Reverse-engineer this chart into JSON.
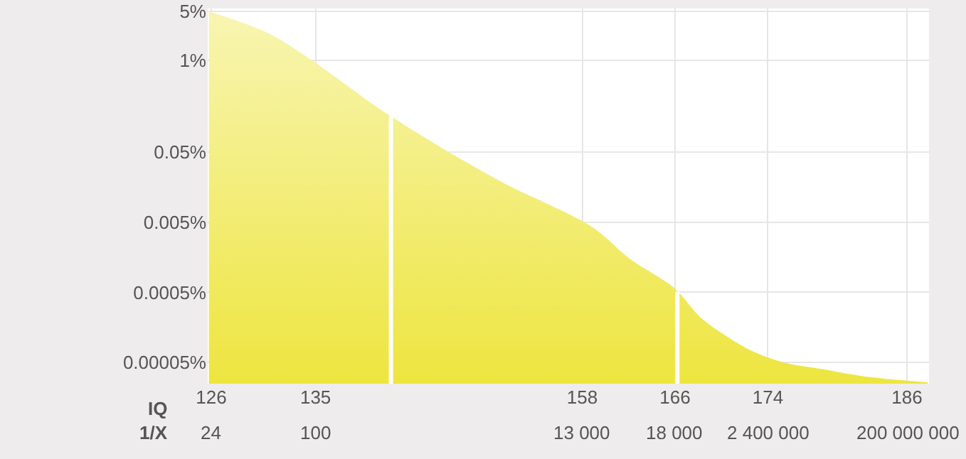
{
  "chart_data": {
    "type": "area",
    "xlabel": "IQ",
    "x": [
      125.8,
      130.8,
      134,
      141.5,
      150.7,
      158.8,
      162.1,
      165.9,
      168.2,
      170.4,
      172.7,
      175.4,
      178.8,
      182.2,
      187.8
    ],
    "series": [
      {
        "color": "#ede53f",
        "values": [
          5,
          2.5,
          1.2,
          0.16,
          0.02,
          0.0043,
          0.0015,
          0.00058,
          0.00022,
          0.00012,
          7.2e-05,
          5e-05,
          4e-05,
          3.2e-05,
          2.6e-05
        ]
      }
    ],
    "xlim": [
      125.7,
      187.9
    ],
    "xticks": [
      126,
      135,
      158,
      166,
      174,
      186
    ],
    "ylim": [
      2.5e-05,
      5.5
    ],
    "yticks": [
      {
        "value": 5,
        "label": "5%"
      },
      {
        "value": 1,
        "label": "1%"
      },
      {
        "value": 0.05,
        "label": "0.05%"
      },
      {
        "value": 0.005,
        "label": "0.005%"
      },
      {
        "value": 0.0005,
        "label": "0.0005%"
      },
      {
        "value": 5e-05,
        "label": "0.00005%"
      }
    ],
    "log": "y",
    "ref_lines": [
      {
        "axis": "x",
        "value": 141.5,
        "color": "#ffffff"
      },
      {
        "axis": "x",
        "value": 166.2,
        "color": "#ffffff"
      }
    ],
    "annotations": [
      "1/X",
      "24",
      "100",
      "13 000",
      "18 000",
      "2 400 000",
      "200 000 000"
    ],
    "grid": true
  }
}
